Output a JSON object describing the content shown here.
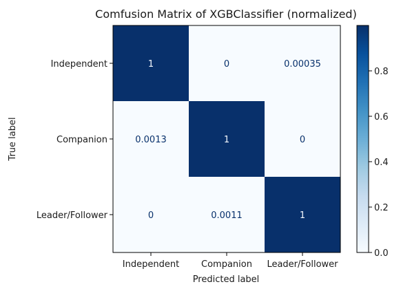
{
  "chart_data": {
    "type": "heatmap",
    "title": "Comfusion Matrix of XGBClassifier (normalized)",
    "xlabel": "Predicted label",
    "ylabel": "True label",
    "x_categories": [
      "Independent",
      "Companion",
      "Leader/Follower"
    ],
    "y_categories": [
      "Independent",
      "Companion",
      "Leader/Follower"
    ],
    "values": [
      [
        1,
        0,
        0.00035
      ],
      [
        0.0013,
        1,
        0
      ],
      [
        0,
        0.0011,
        1
      ]
    ],
    "cell_labels": [
      [
        "1",
        "0",
        "0.00035"
      ],
      [
        "0.0013",
        "1",
        "0"
      ],
      [
        "0",
        "0.0011",
        "1"
      ]
    ],
    "colormap": "Blues",
    "colorbar": {
      "range": [
        0,
        1
      ],
      "ticks": [
        0.0,
        0.2,
        0.4,
        0.6,
        0.8
      ],
      "tick_labels": [
        "0.0",
        "0.2",
        "0.4",
        "0.6",
        "0.8"
      ]
    },
    "colors": {
      "high": "#08306b",
      "low": "#f7fbff",
      "high_text": "#f7fbff",
      "low_text": "#08306b"
    }
  }
}
